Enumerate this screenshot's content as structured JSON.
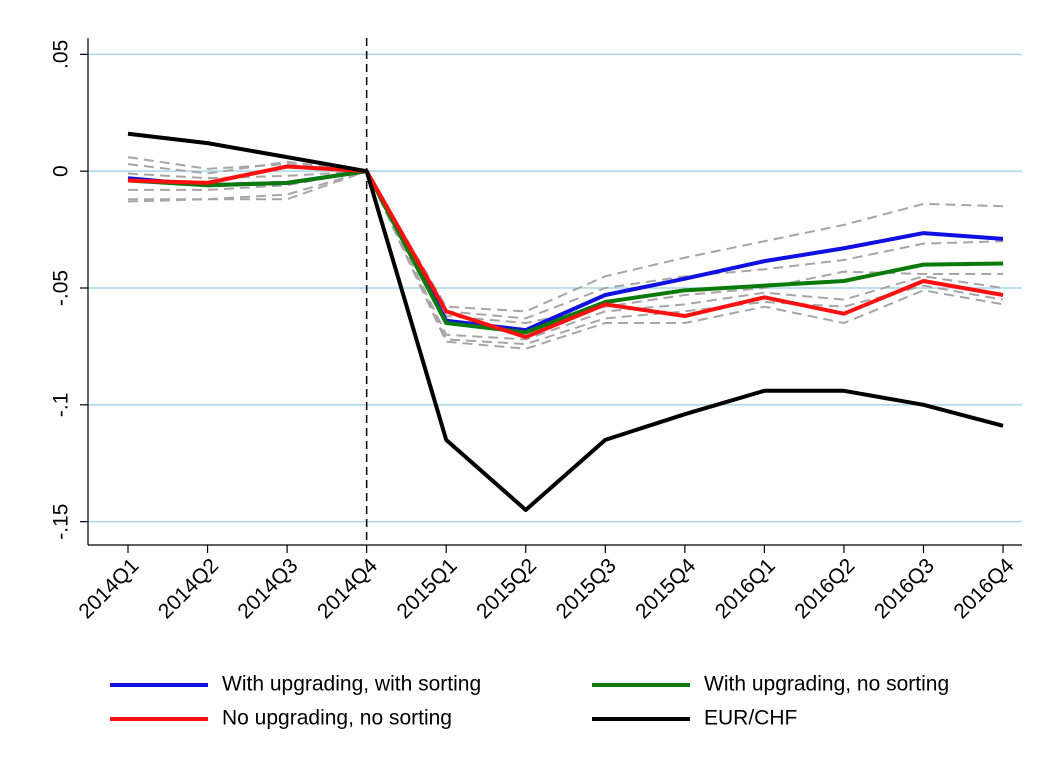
{
  "chart_data": {
    "type": "line",
    "categories": [
      "2014Q1",
      "2014Q2",
      "2014Q3",
      "2014Q4",
      "2015Q1",
      "2015Q2",
      "2015Q3",
      "2015Q4",
      "2016Q1",
      "2016Q2",
      "2016Q3",
      "2016Q4"
    ],
    "series": [
      {
        "name": "With upgrading, with sorting",
        "color": "#1010e0",
        "values": [
          -0.003,
          -0.006,
          -0.005,
          0,
          -0.064,
          -0.068,
          -0.053,
          -0.046,
          -0.0385,
          -0.033,
          -0.0265,
          -0.029
        ]
      },
      {
        "name": "With upgrading, no sorting",
        "color": "#0a7a0a",
        "values": [
          -0.004,
          -0.006,
          -0.005,
          0,
          -0.065,
          -0.069,
          -0.056,
          -0.051,
          -0.049,
          -0.047,
          -0.04,
          -0.0395
        ]
      },
      {
        "name": "No upgrading, no sorting",
        "color": "#ff1010",
        "values": [
          -0.004,
          -0.005,
          0.002,
          0,
          -0.06,
          -0.071,
          -0.057,
          -0.062,
          -0.054,
          -0.061,
          -0.047,
          -0.053
        ]
      },
      {
        "name": "EUR/CHF",
        "color": "#000000",
        "values": [
          0.016,
          0.012,
          0.006,
          0,
          -0.115,
          -0.145,
          -0.115,
          -0.104,
          -0.094,
          -0.094,
          -0.1,
          -0.109
        ]
      },
      {
        "color": "#a6a6a6",
        "dashed": true,
        "values": [
          0.006,
          0.001,
          0.003,
          0,
          -0.058,
          -0.06,
          -0.045,
          -0.037,
          -0.03,
          -0.023,
          -0.014,
          -0.015
        ]
      },
      {
        "color": "#a6a6a6",
        "dashed": true,
        "values": [
          0.003,
          -0.001,
          0.004,
          0,
          -0.06,
          -0.063,
          -0.05,
          -0.045,
          -0.042,
          -0.038,
          -0.031,
          -0.03
        ]
      },
      {
        "color": "#a6a6a6",
        "dashed": true,
        "values": [
          -0.001,
          -0.003,
          -0.002,
          0,
          -0.062,
          -0.065,
          -0.058,
          -0.053,
          -0.05,
          -0.043,
          -0.044,
          -0.044
        ]
      },
      {
        "color": "#a6a6a6",
        "dashed": true,
        "values": [
          -0.008,
          -0.008,
          -0.006,
          0,
          -0.07,
          -0.072,
          -0.06,
          -0.057,
          -0.052,
          -0.055,
          -0.045,
          -0.05
        ]
      },
      {
        "color": "#a6a6a6",
        "dashed": true,
        "values": [
          -0.012,
          -0.012,
          -0.01,
          0,
          -0.072,
          -0.074,
          -0.063,
          -0.06,
          -0.056,
          -0.058,
          -0.049,
          -0.055
        ]
      },
      {
        "color": "#a6a6a6",
        "dashed": true,
        "values": [
          -0.013,
          -0.012,
          -0.012,
          0,
          -0.073,
          -0.076,
          -0.065,
          -0.065,
          -0.058,
          -0.065,
          -0.051,
          -0.057
        ]
      }
    ],
    "ylim": [
      -0.16,
      0.057
    ],
    "yticks": [
      {
        "value": 0.05,
        "label": ".05"
      },
      0,
      {
        "value": -0.05,
        "label": "-.05"
      },
      {
        "value": -0.1,
        "label": "-.1"
      },
      {
        "value": -0.15,
        "label": "-.15"
      }
    ],
    "grid": true,
    "grid_color": "#a9d5e5",
    "vline": "2014Q4",
    "legend": "bottom"
  }
}
